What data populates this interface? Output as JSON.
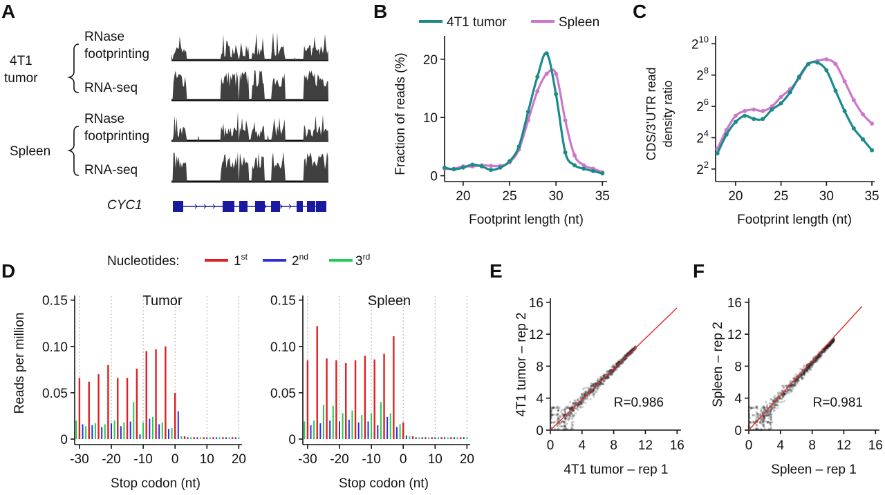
{
  "panel_letters": [
    "A",
    "B",
    "C",
    "D",
    "E",
    "F"
  ],
  "panelA": {
    "groups": [
      {
        "name_line1": "4T1",
        "name_line2": "tumor",
        "tracks": [
          {
            "label_line1": "RNase",
            "label_line2": "footprinting"
          },
          {
            "label_line1": "RNA-seq",
            "label_line2": ""
          }
        ]
      },
      {
        "name_line1": "Spleen",
        "name_line2": "",
        "tracks": [
          {
            "label_line1": "RNase",
            "label_line2": "footprinting"
          },
          {
            "label_line1": "RNA-seq",
            "label_line2": ""
          }
        ]
      }
    ],
    "gene": "CYC1"
  },
  "legendBC": {
    "series1": "4T1 tumor",
    "series2": "Spleen"
  },
  "legendD": {
    "title": "Nucleotides:",
    "n1": "1",
    "n1_sup": "st",
    "n2": "2",
    "n2_sup": "nd",
    "n3": "3",
    "n3_sup": "rd"
  },
  "colors": {
    "tumor": "#1a8a8a",
    "spleen": "#cc77cc",
    "n1": "#e02020",
    "n2": "#3030dd",
    "n3": "#22cc55",
    "fit": "#e03030",
    "track": "#404040",
    "gene": "#1a1aa0"
  },
  "chart_data": [
    {
      "id": "B",
      "type": "line",
      "xlabel": "Footprint length (nt)",
      "ylabel": "Fraction of reads (%)",
      "xlim": [
        18,
        35.5
      ],
      "ylim": [
        -1,
        24
      ],
      "xticks": [
        20,
        25,
        30,
        35
      ],
      "yticks": [
        0,
        10,
        20
      ],
      "x": [
        18,
        19,
        20,
        21,
        22,
        23,
        24,
        25,
        26,
        27,
        28,
        29,
        30,
        31,
        32,
        33,
        34,
        35
      ],
      "series": [
        {
          "name": "4T1 tumor",
          "values": [
            1.4,
            1.1,
            1.4,
            1.9,
            1.6,
            1.0,
            1.4,
            2.5,
            5.0,
            11.0,
            17.0,
            21.0,
            14.0,
            4.0,
            1.8,
            1.2,
            0.8,
            0.4
          ]
        },
        {
          "name": "Spleen",
          "values": [
            1.2,
            1.2,
            1.6,
            1.6,
            1.8,
            1.7,
            1.7,
            2.3,
            4.5,
            9.5,
            14.5,
            17.5,
            17.5,
            9.5,
            3.5,
            1.8,
            1.2,
            0.6
          ]
        }
      ]
    },
    {
      "id": "C",
      "type": "line",
      "xlabel": "Footprint length (nt)",
      "ylabel_line1": "CDS/3’UTR read",
      "ylabel_line2": "density ratio",
      "xlim": [
        17.8,
        35.3
      ],
      "ylim": [
        1.2,
        10.5
      ],
      "xticks": [
        20,
        25,
        30,
        35
      ],
      "yticks": [
        {
          "base": "2",
          "exp": "2",
          "v": 2
        },
        {
          "base": "2",
          "exp": "4",
          "v": 4
        },
        {
          "base": "2",
          "exp": "6",
          "v": 6
        },
        {
          "base": "2",
          "exp": "8",
          "v": 8
        },
        {
          "base": "2",
          "exp": "10",
          "v": 10
        }
      ],
      "x": [
        18,
        19,
        20,
        21,
        22,
        23,
        24,
        25,
        26,
        27,
        28,
        29,
        30,
        31,
        32,
        33,
        34,
        35
      ],
      "series": [
        {
          "name": "4T1 tumor",
          "values": [
            3.0,
            4.2,
            5.0,
            5.4,
            5.2,
            5.2,
            5.8,
            6.2,
            6.9,
            7.9,
            8.7,
            8.8,
            8.3,
            7.0,
            5.7,
            4.6,
            3.9,
            3.2
          ]
        },
        {
          "name": "Spleen",
          "values": [
            3.3,
            4.5,
            5.4,
            5.7,
            5.8,
            5.7,
            6.0,
            6.6,
            7.1,
            7.8,
            8.7,
            8.9,
            9.0,
            8.7,
            7.6,
            6.4,
            5.5,
            4.9
          ]
        }
      ]
    },
    {
      "id": "D-tumor",
      "type": "bar",
      "title": "Tumor",
      "xlabel": "Stop codon (nt)",
      "ylabel": "Reads per million",
      "xlim": [
        -31.5,
        21
      ],
      "ylim": [
        0,
        0.155
      ],
      "xticks": [
        -30,
        -20,
        -10,
        0,
        10,
        20
      ],
      "yticks": [
        0,
        0.05,
        0.1,
        0.15
      ],
      "ytick_labels": [
        "0",
        "0.05",
        "0.10",
        "0.15"
      ],
      "positions": [
        -31,
        -30,
        -29,
        -28,
        -27,
        -26,
        -25,
        -24,
        -23,
        -22,
        -21,
        -20,
        -19,
        -18,
        -17,
        -16,
        -15,
        -14,
        -13,
        -12,
        -11,
        -10,
        -9,
        -8,
        -7,
        -6,
        -5,
        -4,
        -3,
        -2,
        -1,
        0,
        1,
        2,
        3,
        4,
        5,
        6,
        7,
        8,
        9,
        10,
        11,
        12,
        13,
        14,
        15,
        16,
        17,
        18,
        19,
        20
      ],
      "frame": [
        3,
        1,
        2,
        3,
        1,
        2,
        3,
        1,
        2,
        3,
        1,
        2,
        3,
        1,
        2,
        3,
        1,
        2,
        3,
        1,
        2,
        3,
        1,
        2,
        3,
        1,
        2,
        3,
        1,
        2,
        3,
        1,
        2,
        3,
        1,
        2,
        3,
        1,
        2,
        3,
        1,
        2,
        3,
        1,
        2,
        3,
        1,
        2,
        3,
        1,
        2,
        3
      ],
      "values": [
        0.02,
        0.066,
        0.016,
        0.014,
        0.062,
        0.015,
        0.017,
        0.07,
        0.013,
        0.016,
        0.08,
        0.017,
        0.02,
        0.066,
        0.014,
        0.018,
        0.066,
        0.019,
        0.04,
        0.076,
        0.005,
        0.018,
        0.095,
        0.022,
        0.024,
        0.097,
        0.016,
        0.018,
        0.1,
        0.011,
        0.012,
        0.05,
        0.03,
        0.003,
        0.003,
        0.002,
        0.002,
        0.002,
        0.002,
        0.002,
        0.002,
        0.002,
        0.002,
        0.002,
        0.002,
        0.002,
        0.002,
        0.002,
        0.002,
        0.002,
        0.002,
        0.002
      ]
    },
    {
      "id": "D-spleen",
      "type": "bar",
      "title": "Spleen",
      "xlabel": "Stop codon (nt)",
      "ylabel": "",
      "xlim": [
        -31.5,
        21
      ],
      "ylim": [
        0,
        0.155
      ],
      "xticks": [
        -30,
        -20,
        -10,
        0,
        10,
        20
      ],
      "yticks": [
        0,
        0.05,
        0.1,
        0.15
      ],
      "ytick_labels": [
        "0",
        "0.05",
        "0.10",
        "0.15"
      ],
      "positions": [
        -31,
        -30,
        -29,
        -28,
        -27,
        -26,
        -25,
        -24,
        -23,
        -22,
        -21,
        -20,
        -19,
        -18,
        -17,
        -16,
        -15,
        -14,
        -13,
        -12,
        -11,
        -10,
        -9,
        -8,
        -7,
        -6,
        -5,
        -4,
        -3,
        -2,
        -1,
        0,
        1,
        2,
        3,
        4,
        5,
        6,
        7,
        8,
        9,
        10,
        11,
        12,
        13,
        14,
        15,
        16,
        17,
        18,
        19,
        20
      ],
      "frame": [
        3,
        1,
        2,
        3,
        1,
        2,
        3,
        1,
        2,
        3,
        1,
        2,
        3,
        1,
        2,
        3,
        1,
        2,
        3,
        1,
        2,
        3,
        1,
        2,
        3,
        1,
        2,
        3,
        1,
        2,
        3,
        1,
        2,
        3,
        1,
        2,
        3,
        1,
        2,
        3,
        1,
        2,
        3,
        1,
        2,
        3,
        1,
        2,
        3,
        1,
        2,
        3
      ],
      "values": [
        0.019,
        0.085,
        0.015,
        0.02,
        0.122,
        0.017,
        0.037,
        0.087,
        0.02,
        0.036,
        0.085,
        0.019,
        0.028,
        0.082,
        0.021,
        0.031,
        0.085,
        0.018,
        0.026,
        0.09,
        0.019,
        0.028,
        0.086,
        0.015,
        0.04,
        0.092,
        0.024,
        0.028,
        0.111,
        0.013,
        0.016,
        0.018,
        0.004,
        0.003,
        0.003,
        0.002,
        0.002,
        0.002,
        0.002,
        0.002,
        0.002,
        0.002,
        0.002,
        0.002,
        0.002,
        0.002,
        0.002,
        0.002,
        0.002,
        0.002,
        0.002,
        0.002
      ]
    },
    {
      "id": "E",
      "type": "scatter",
      "xlabel": "4T1 tumor – rep 1",
      "ylabel": "4T1 tumor – rep 2",
      "xlim": [
        0,
        16.5
      ],
      "ylim": [
        0,
        16.5
      ],
      "xticks": [
        0,
        4,
        8,
        12,
        16
      ],
      "yticks": [
        0,
        4,
        8,
        12,
        16
      ],
      "r_label": "R=0.986",
      "fit_line": {
        "x": [
          0,
          16
        ],
        "y": [
          0,
          15.3
        ]
      },
      "point_count": 900
    },
    {
      "id": "F",
      "type": "scatter",
      "xlabel": "Spleen – rep 1",
      "ylabel": "Spleen – rep 2",
      "xlim": [
        0,
        16.5
      ],
      "ylim": [
        0,
        16.5
      ],
      "xticks": [
        0,
        4,
        8,
        12,
        16
      ],
      "yticks": [
        0,
        4,
        8,
        12,
        16
      ],
      "r_label": "R=0.981",
      "fit_line": {
        "x": [
          0,
          14.3
        ],
        "y": [
          0,
          15.5
        ]
      },
      "point_count": 900
    }
  ]
}
